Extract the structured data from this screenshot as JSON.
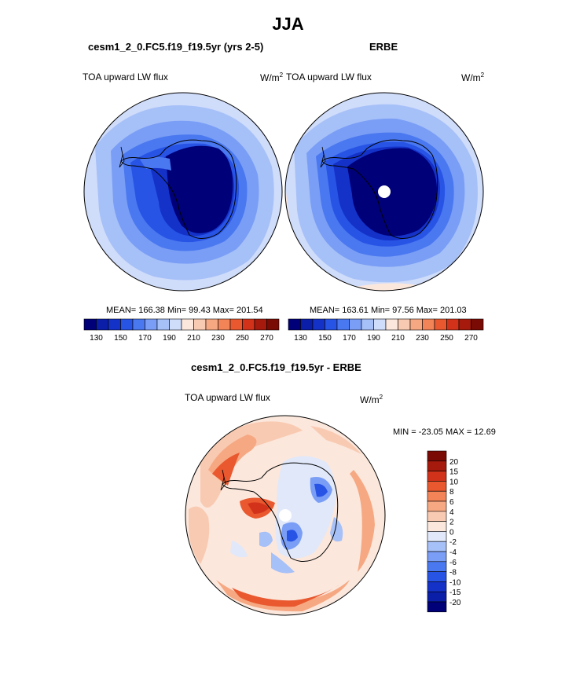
{
  "page": {
    "season_title": "JJA"
  },
  "panels": [
    {
      "case_title": "cesm1_2_0.FC5.f19_f19.5yr (yrs 2-5)",
      "variable_label": "TOA upward LW flux",
      "units": "W/m",
      "units_power": "2",
      "stats_text": "MEAN= 166.38  Min=  99.43  Max= 201.54"
    },
    {
      "case_title": "ERBE",
      "variable_label": "TOA upward LW flux",
      "units": "W/m",
      "units_power": "2",
      "stats_text": "MEAN= 163.61  Min=  97.56  Max= 201.03"
    },
    {
      "case_title": "cesm1_2_0.FC5.f19_f19.5yr - ERBE",
      "variable_label": "TOA upward LW flux",
      "units": "W/m",
      "units_power": "2",
      "stats_text": "MIN = -23.05 MAX =  12.69"
    }
  ],
  "chart_data": [
    {
      "type": "heatmap",
      "projection": "polar-stereographic-south",
      "case": "cesm1_2_0.FC5.f19_f19.5yr (yrs 2-5)",
      "variable": "TOA upward LW flux",
      "units": "W/m2",
      "mean": 166.38,
      "min": 99.43,
      "max": 201.54,
      "colorbar": {
        "orientation": "horizontal",
        "levels": [
          130,
          140,
          150,
          160,
          170,
          180,
          190,
          200,
          210,
          220,
          230,
          240,
          250,
          260,
          270
        ],
        "tick_labels": [
          "130",
          "150",
          "170",
          "190",
          "210",
          "230",
          "250",
          "270"
        ],
        "colors": [
          "#000078",
          "#0a1ea8",
          "#1432c8",
          "#2854e6",
          "#4a78f0",
          "#7a9ef5",
          "#a6c0f8",
          "#cfdcfa",
          "#fbe7dc",
          "#f9cab2",
          "#f6a882",
          "#f28458",
          "#e9582e",
          "#d2321a",
          "#a51a0c",
          "#7a0a04"
        ]
      }
    },
    {
      "type": "heatmap",
      "projection": "polar-stereographic-south",
      "case": "ERBE",
      "variable": "TOA upward LW flux",
      "units": "W/m2",
      "mean": 163.61,
      "min": 97.56,
      "max": 201.03,
      "colorbar": {
        "orientation": "horizontal",
        "levels": [
          130,
          140,
          150,
          160,
          170,
          180,
          190,
          200,
          210,
          220,
          230,
          240,
          250,
          260,
          270
        ],
        "tick_labels": [
          "130",
          "150",
          "170",
          "190",
          "210",
          "230",
          "250",
          "270"
        ],
        "colors": [
          "#000078",
          "#0a1ea8",
          "#1432c8",
          "#2854e6",
          "#4a78f0",
          "#7a9ef5",
          "#a6c0f8",
          "#cfdcfa",
          "#fbe7dc",
          "#f9cab2",
          "#f6a882",
          "#f28458",
          "#e9582e",
          "#d2321a",
          "#a51a0c",
          "#7a0a04"
        ]
      }
    },
    {
      "type": "heatmap",
      "projection": "polar-stereographic-south",
      "case": "cesm1_2_0.FC5.f19_f19.5yr - ERBE",
      "variable": "TOA upward LW flux",
      "units": "W/m2",
      "min": -23.05,
      "max": 12.69,
      "colorbar": {
        "orientation": "vertical",
        "tick_labels": [
          "20",
          "15",
          "10",
          "8",
          "6",
          "4",
          "2",
          "0",
          "-2",
          "-4",
          "-6",
          "-8",
          "-10",
          "-15",
          "-20"
        ],
        "colors": [
          "#7a0a04",
          "#a51a0c",
          "#d2321a",
          "#e9582e",
          "#f28458",
          "#f6a882",
          "#f9cab2",
          "#fbe7dc",
          "#e0e8fa",
          "#a6c0f8",
          "#7a9ef5",
          "#4a78f0",
          "#2854e6",
          "#1432c8",
          "#0a1ea8",
          "#000078"
        ]
      }
    }
  ]
}
